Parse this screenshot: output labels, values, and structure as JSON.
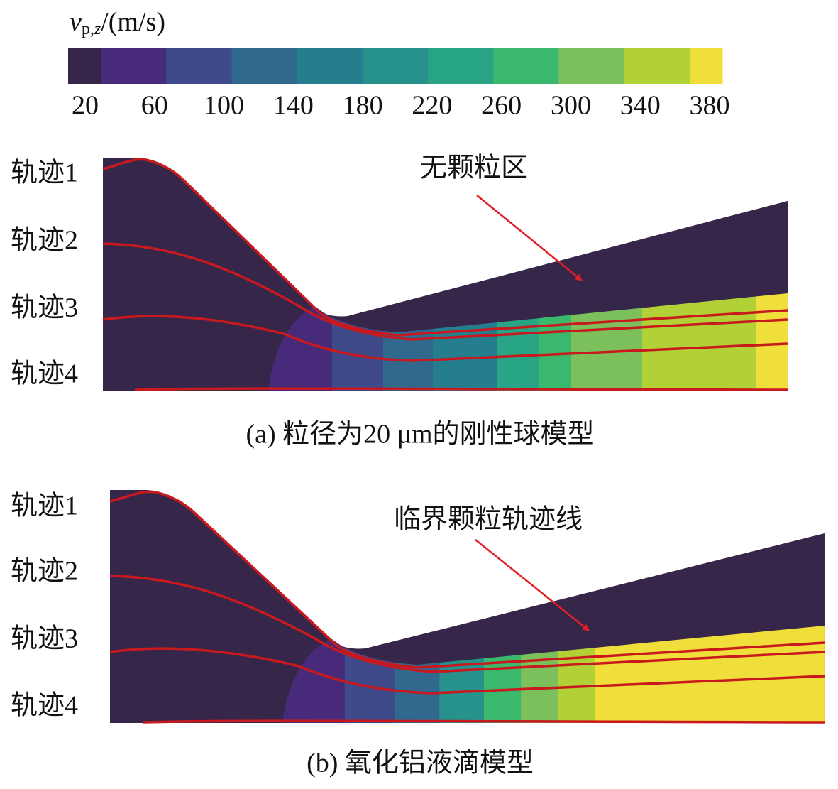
{
  "colorbar": {
    "label": {
      "symbol": "v",
      "subscript_a": "p,",
      "subscript_b": "z",
      "unit": "/(m/s)"
    },
    "ticks": [
      20,
      60,
      100,
      140,
      180,
      220,
      260,
      300,
      340,
      380
    ],
    "colors": [
      "#35264a",
      "#472a7a",
      "#3e4a89",
      "#30688e",
      "#247e8e",
      "#26928b",
      "#27a585",
      "#3ab86e",
      "#7bc05a",
      "#b1d136",
      "#f0df3a"
    ]
  },
  "panels": [
    {
      "trajectory_labels": [
        "轨迹1",
        "轨迹2",
        "轨迹3",
        "轨迹4"
      ],
      "annotation": "无颗粒区",
      "caption": "(a) 粒径为20 μm的刚性球模型"
    },
    {
      "trajectory_labels": [
        "轨迹1",
        "轨迹2",
        "轨迹3",
        "轨迹4"
      ],
      "annotation": "临界颗粒轨迹线",
      "caption": "(b) 氧化铝液滴模型"
    }
  ]
}
